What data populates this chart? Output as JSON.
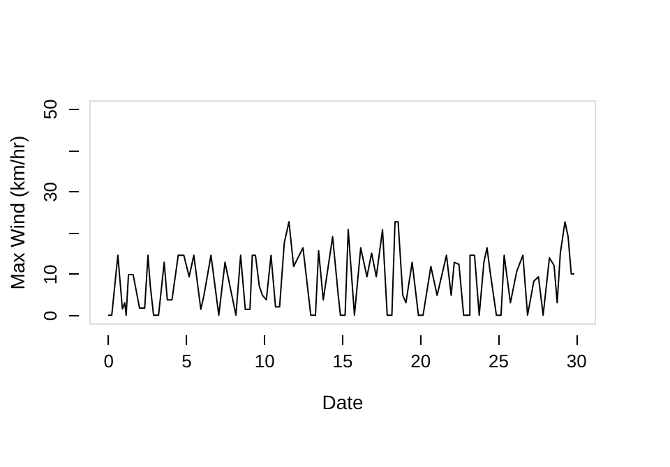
{
  "chart_data": {
    "type": "line",
    "xlabel": "Date",
    "ylabel": "Max Wind (km/hr)",
    "xlim": [
      -1.2,
      31.2
    ],
    "ylim": [
      -2,
      52
    ],
    "xticks": [
      0,
      5,
      10,
      15,
      20,
      25,
      30
    ],
    "yticks": [
      0,
      10,
      {
        "value": 20,
        "label": null
      },
      30,
      {
        "value": 40,
        "label": null
      },
      50
    ],
    "grid": false,
    "legend": false,
    "marker": "none",
    "line_style": "solid",
    "series": [
      {
        "color": "#000000",
        "x": [
          0,
          0.24,
          0.63,
          0.92,
          1.07,
          1.16,
          1.31,
          1.61,
          2.02,
          2.35,
          2.56,
          2.71,
          2.92,
          3.24,
          3.6,
          3.8,
          4.1,
          4.5,
          4.86,
          5.2,
          5.5,
          5.95,
          6.15,
          6.6,
          7.1,
          7.5,
          8.2,
          8.5,
          8.8,
          9.1,
          9.25,
          9.45,
          9.7,
          9.9,
          10.15,
          10.45,
          10.74,
          11.0,
          11.3,
          11.6,
          11.9,
          12.5,
          13.0,
          13.3,
          13.5,
          13.8,
          14.4,
          14.76,
          14.9,
          15.2,
          15.4,
          15.8,
          16.2,
          16.6,
          16.9,
          17.2,
          17.6,
          17.9,
          18.2,
          18.4,
          18.6,
          18.9,
          19.1,
          19.5,
          19.9,
          20.2,
          20.7,
          21.1,
          21.7,
          22.0,
          22.2,
          22.5,
          22.8,
          23.2,
          23.21,
          23.5,
          23.8,
          24.1,
          24.3,
          24.5,
          24.9,
          25.2,
          25.4,
          25.8,
          26.2,
          26.6,
          26.9,
          27.3,
          27.6,
          27.9,
          28.3,
          28.6,
          28.8,
          29.0,
          29.3,
          29.5,
          29.7,
          29.9
        ],
        "values": [
          0,
          0,
          14.5,
          1.5,
          3,
          0,
          9.8,
          9.8,
          1.7,
          1.7,
          14.5,
          7,
          0,
          0,
          12.8,
          3.7,
          3.7,
          14.5,
          14.5,
          9.3,
          14.5,
          1.4,
          4.8,
          14.5,
          0,
          12.8,
          0,
          14.5,
          1.4,
          1.4,
          14.5,
          14.5,
          7,
          4.8,
          3.7,
          14.5,
          2,
          2,
          17.5,
          22.6,
          11.8,
          16.3,
          0,
          0,
          15.6,
          3.7,
          19,
          4.8,
          0,
          0,
          20.7,
          0,
          16.3,
          9.3,
          15,
          9.3,
          20.7,
          0,
          0,
          22.6,
          22.6,
          4.8,
          3,
          12.8,
          0,
          0,
          11.8,
          4.8,
          14.5,
          4.8,
          12.8,
          12.3,
          0,
          0,
          14.5,
          14.5,
          0,
          12.8,
          16.3,
          10.5,
          0,
          0,
          14.5,
          3,
          10.5,
          14.5,
          0,
          8.2,
          9.3,
          0,
          13.9,
          12,
          3,
          15,
          22.6,
          19,
          10,
          10
        ]
      }
    ]
  }
}
